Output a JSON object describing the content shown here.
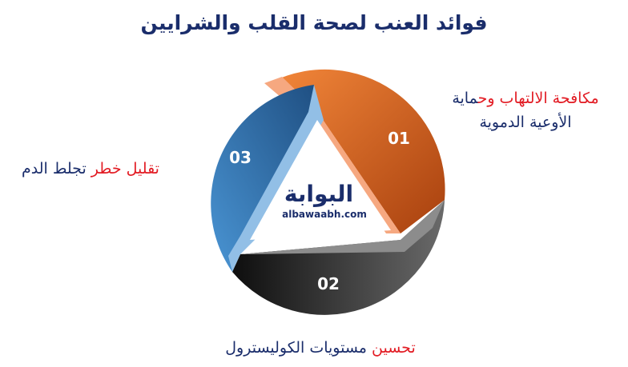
{
  "title": "فوائد العنب لصحة القلب والشرايين",
  "items": [
    {
      "number": "01",
      "label_red": "مكافحة الالتهاب وح",
      "label_dark": "ماية",
      "label_line2": "الأوعية الدموية",
      "color": "#e4641f"
    },
    {
      "number": "02",
      "label_red": "تحسين",
      "label_dark": "مستويات الكوليسترول",
      "color": "#3a3a3a"
    },
    {
      "number": "03",
      "label_red": "تقليل خطر",
      "label_dark": "تجلط الدم",
      "color": "#3c7fbf"
    }
  ],
  "logo": {
    "arabic": "البوابة",
    "latin": "albawaabh.com"
  },
  "colors": {
    "title": "#1a2d6b",
    "accent_red": "#e21b23"
  }
}
